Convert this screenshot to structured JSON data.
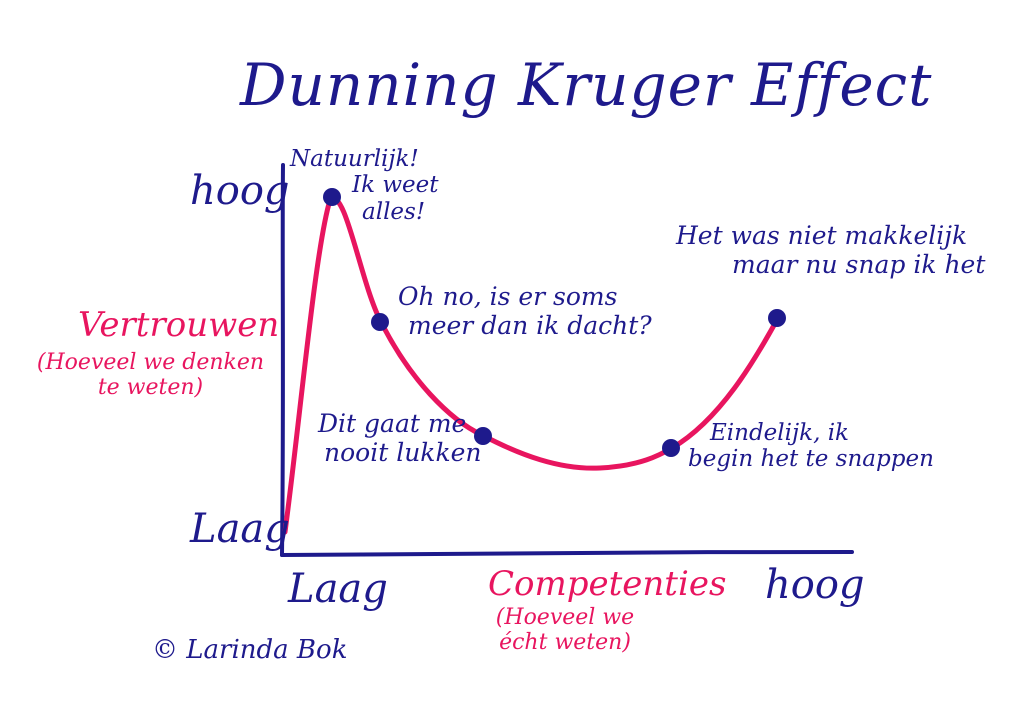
{
  "title": "Dunning Kruger Effect",
  "y_axis": {
    "label": "Vertrouwen",
    "sublabel_line1": "(Hoeveel we denken",
    "sublabel_line2": "te weten)",
    "high": "hoog",
    "low": "Laag"
  },
  "x_axis": {
    "label": "Competenties",
    "sublabel_line1": "(Hoeveel we",
    "sublabel_line2": "écht weten)",
    "low": "Laag",
    "high": "hoog"
  },
  "annotations": [
    {
      "line1": "Natuurlijk!",
      "line2": "Ik weet",
      "line3": "alles!"
    },
    {
      "line1": "Oh no, is er soms",
      "line2": "meer dan ik dacht?"
    },
    {
      "line1": "Dit gaat me",
      "line2": "nooit lukken"
    },
    {
      "line1": "Eindelijk, ik",
      "line2": "begin het te snappen"
    },
    {
      "line1": "Het was niet makkelijk",
      "line2": "maar nu snap ik het"
    }
  ],
  "credit": "© Larinda Bok",
  "colors": {
    "ink": "#1e1a8c",
    "accent": "#e8155f"
  }
}
